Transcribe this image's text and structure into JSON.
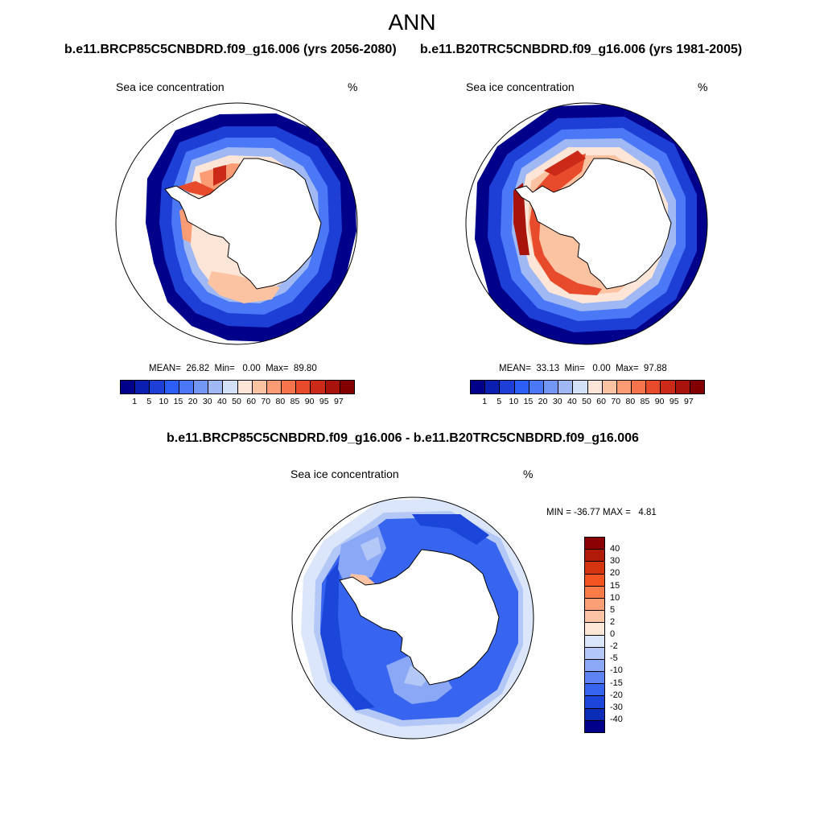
{
  "title": "ANN",
  "panels": [
    {
      "case": "b.e11.BRCP85C5CNBDRD.f09_g16.006 (yrs 2056-2080)",
      "variable": "Sea ice concentration",
      "units": "%",
      "stats": "MEAN=  26.82  Min=   0.00  Max=  89.80"
    },
    {
      "case": "b.e11.B20TRC5CNBDRD.f09_g16.006 (yrs 1981-2005)",
      "variable": "Sea ice concentration",
      "units": "%",
      "stats": "MEAN=  33.13  Min=   0.00  Max=  97.88"
    }
  ],
  "difference": {
    "case": "b.e11.BRCP85C5CNBDRD.f09_g16.006 - b.e11.B20TRC5CNBDRD.f09_g16.006",
    "variable": "Sea ice concentration",
    "units": "%",
    "stats": "MIN = -36.77 MAX =   4.81"
  },
  "colorbar_abs": {
    "labels": [
      "1",
      "5",
      "10",
      "15",
      "20",
      "30",
      "40",
      "50",
      "60",
      "70",
      "80",
      "85",
      "90",
      "95",
      "97"
    ],
    "colors": [
      "#00008b",
      "#0a1fb0",
      "#1e3fd6",
      "#2c5df5",
      "#4a78f7",
      "#7396f5",
      "#a0b8f3",
      "#d2e0f8",
      "#fde6d8",
      "#fcc3a3",
      "#fc9c74",
      "#f6734c",
      "#e84a2c",
      "#cc2a18",
      "#a8140c",
      "#820000"
    ]
  },
  "colorbar_diff": {
    "labels": [
      "40",
      "30",
      "20",
      "15",
      "10",
      "5",
      "2",
      "0",
      "-2",
      "-5",
      "-10",
      "-15",
      "-20",
      "-30",
      "-40"
    ],
    "colors": [
      "#8b0000",
      "#b01a08",
      "#d43510",
      "#f35420",
      "#fa7b48",
      "#fb9f77",
      "#fcc4a4",
      "#fde8d8",
      "#dce6fa",
      "#b4c8f7",
      "#8aa8f5",
      "#5d84f2",
      "#3865ef",
      "#1c46da",
      "#0b2cb6",
      "#00008b"
    ]
  }
}
